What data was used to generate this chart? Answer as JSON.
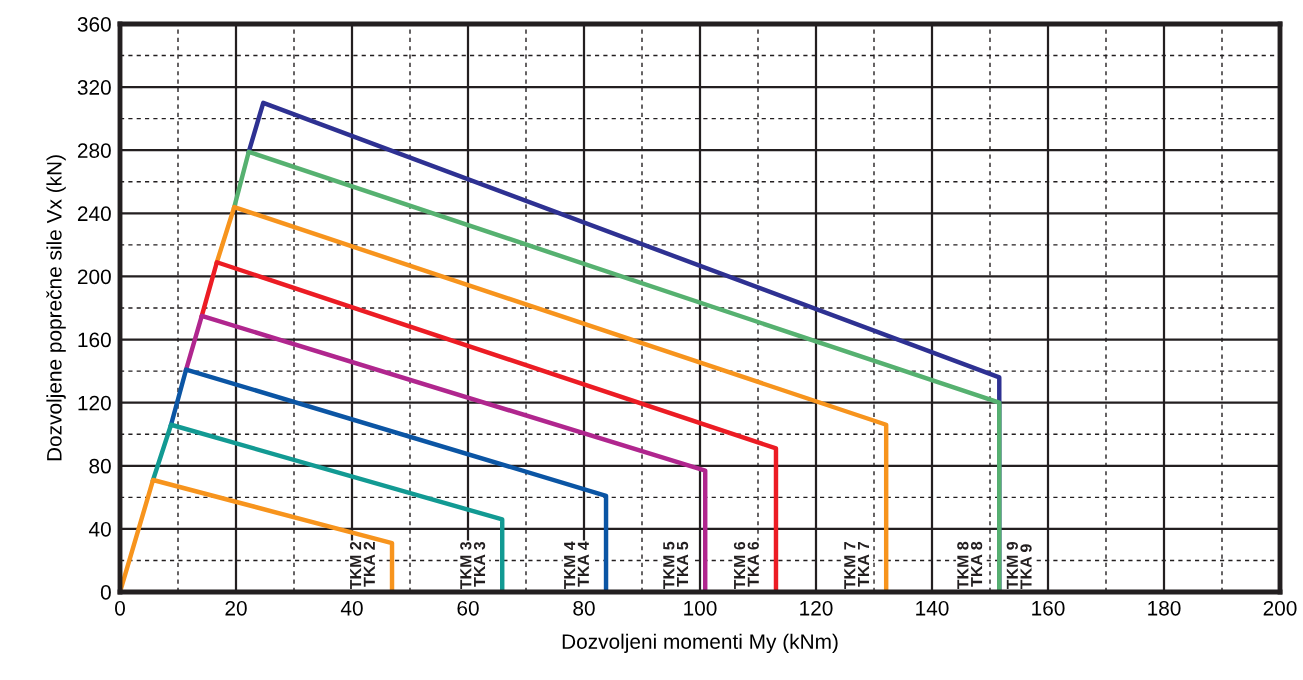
{
  "chart_data": {
    "type": "line",
    "xlabel": "Dozvoljeni momenti My (kNm)",
    "ylabel": "Dozvoljene poprečne sile Vx (kN)",
    "xlim": [
      0,
      200
    ],
    "ylim": [
      0,
      360
    ],
    "xticks": [
      0,
      20,
      40,
      60,
      80,
      100,
      120,
      140,
      160,
      180,
      200
    ],
    "yticks": [
      0,
      40,
      80,
      120,
      160,
      200,
      240,
      280,
      320,
      360
    ],
    "grid": true,
    "legend": false,
    "marker": "none",
    "line_style": "solid",
    "series": [
      {
        "name": "TKM 2\nTKA 2",
        "color": "#f7941d",
        "x": [
          0,
          5.7,
          46.9,
          46.9
        ],
        "values": [
          0,
          71,
          31,
          0
        ]
      },
      {
        "name": "TKM 3\nTKA 3",
        "color": "#129a93",
        "x": [
          5.7,
          8.8,
          65.9,
          65.9
        ],
        "values": [
          71,
          106,
          46,
          0
        ]
      },
      {
        "name": "TKM 4\nTKA 4",
        "color": "#0b55a4",
        "x": [
          8.8,
          11.4,
          83.8,
          83.8
        ],
        "values": [
          106,
          141,
          61,
          0
        ]
      },
      {
        "name": "TKM 5\nTKA 5",
        "color": "#b0268e",
        "x": [
          11.4,
          14.1,
          100.9,
          100.9
        ],
        "values": [
          141,
          175,
          77,
          0
        ]
      },
      {
        "name": "TKM 6\nTKA 6",
        "color": "#ec1c24",
        "x": [
          14.1,
          16.7,
          113.1,
          113.1
        ],
        "values": [
          175,
          209,
          91,
          0
        ]
      },
      {
        "name": "TKM 7\nTKA 7",
        "color": "#f7941d",
        "x": [
          16.7,
          19.7,
          132.1,
          132.1
        ],
        "values": [
          209,
          244,
          106,
          0
        ]
      },
      {
        "name": "TKM 8\nTKA 8",
        "color": "#56b170",
        "x": [
          19.7,
          22.2,
          151.6,
          151.6
        ],
        "values": [
          244,
          279,
          120,
          0
        ]
      },
      {
        "name": "TKM 9\nTKA 9",
        "color": "#2e3192",
        "x": [
          22.2,
          24.7,
          151.6,
          151.6
        ],
        "values": [
          279,
          310,
          136,
          0
        ]
      }
    ]
  }
}
